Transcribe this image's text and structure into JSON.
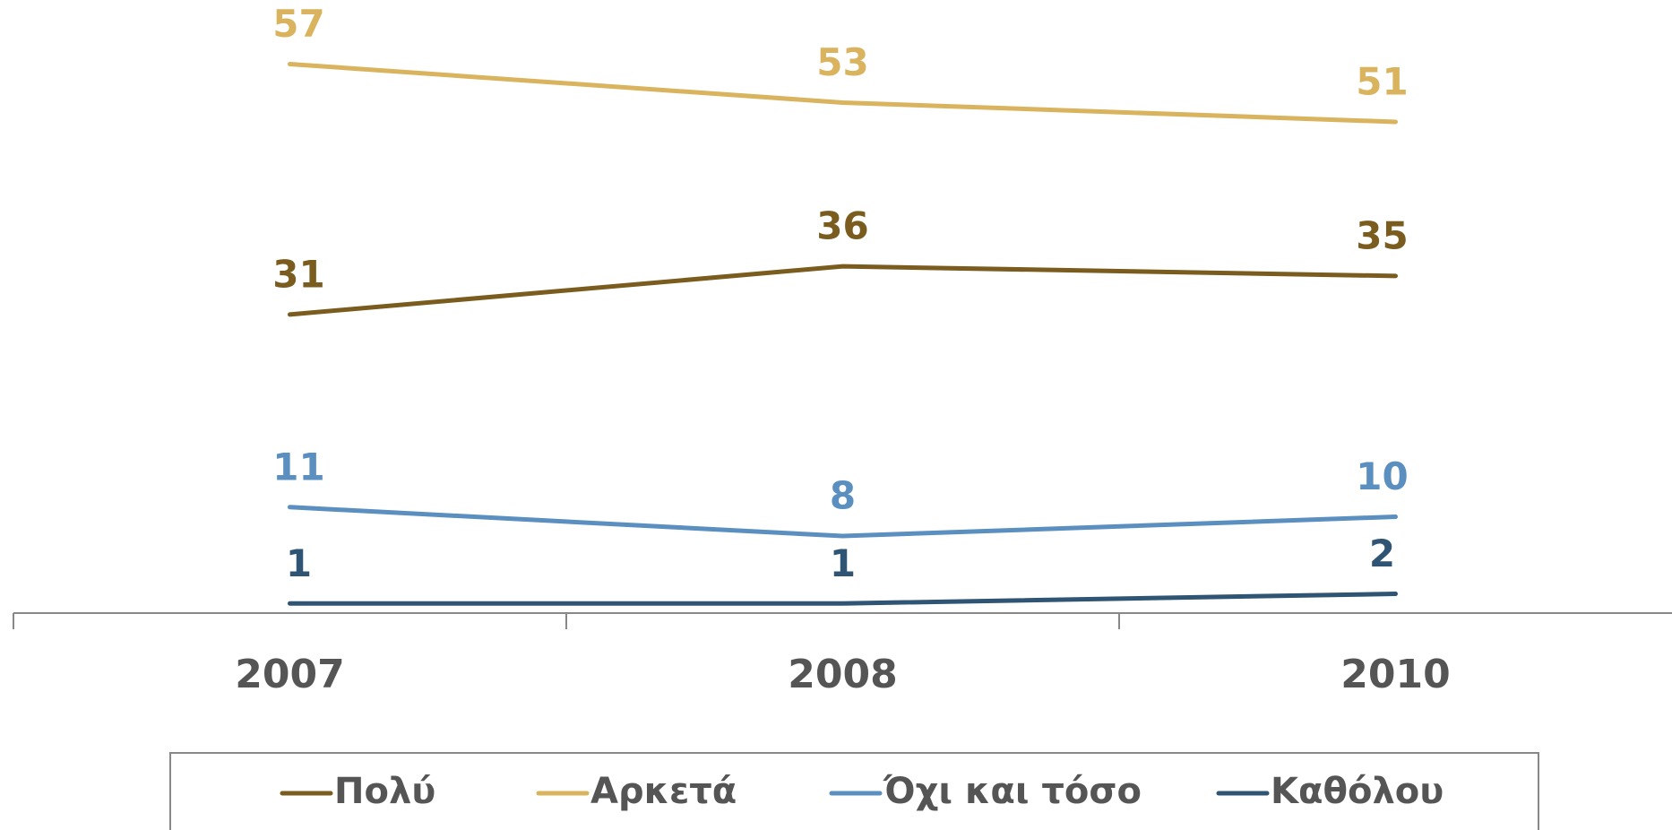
{
  "chart_data": {
    "type": "line",
    "categories": [
      "2007",
      "2008",
      "2010"
    ],
    "series": [
      {
        "name": "Πολύ",
        "color": "#7a5c1e",
        "values": [
          31,
          36,
          35
        ]
      },
      {
        "name": "Αρκετά",
        "color": "#d9b35d",
        "values": [
          57,
          53,
          51
        ]
      },
      {
        "name": "Όχι και τόσο",
        "color": "#5b8fc0",
        "values": [
          11,
          8,
          10
        ]
      },
      {
        "name": "Καθόλου",
        "color": "#2f5474",
        "values": [
          1,
          1,
          2
        ]
      }
    ],
    "ylim": [
      0,
      63
    ],
    "grid": false,
    "legend": "bottom"
  }
}
